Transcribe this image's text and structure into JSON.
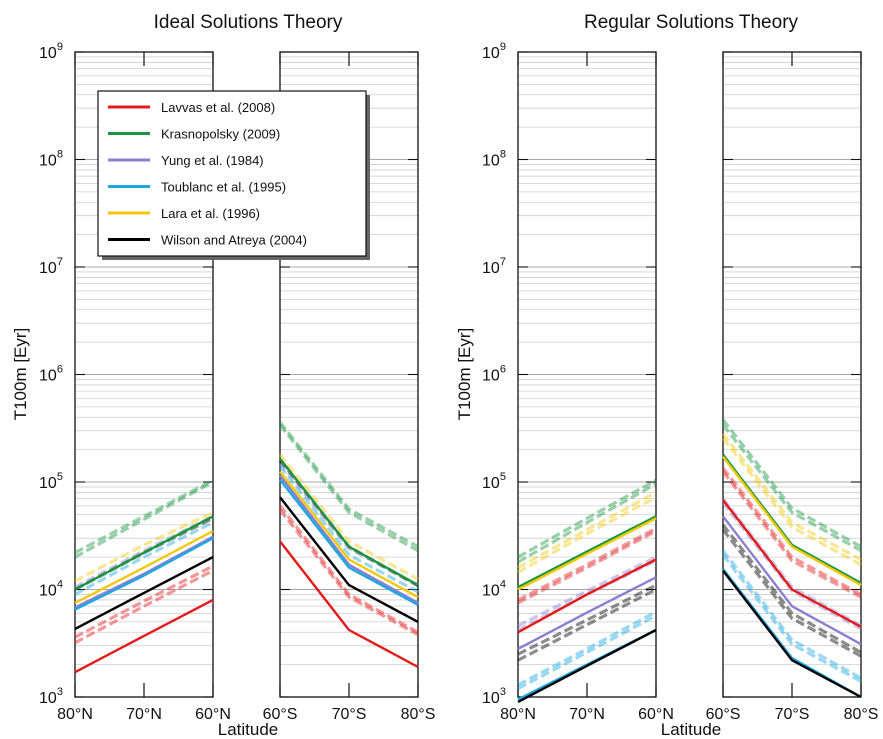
{
  "panels": [
    {
      "title": "Ideal Solutions Theory",
      "ylabel": "T100m [Eyr]"
    },
    {
      "title": "Regular Solutions Theory",
      "ylabel": "T100m [Eyr]"
    }
  ],
  "xlabel": "Latitude",
  "x_north_ticks": [
    "80°N",
    "70°N",
    "60°N"
  ],
  "x_south_ticks": [
    "60°S",
    "70°S",
    "80°S"
  ],
  "y_ticks": [
    {
      "base": "10",
      "exp": "3"
    },
    {
      "base": "10",
      "exp": "4"
    },
    {
      "base": "10",
      "exp": "5"
    },
    {
      "base": "10",
      "exp": "6"
    },
    {
      "base": "10",
      "exp": "7"
    },
    {
      "base": "10",
      "exp": "8"
    },
    {
      "base": "10",
      "exp": "9"
    }
  ],
  "legend": [
    {
      "label": "Lavvas et al. (2008)",
      "color": "#e41a1c"
    },
    {
      "label": "Krasnopolsky (2009)",
      "color": "#1a9641"
    },
    {
      "label": "Yung et al. (1984)",
      "color": "#8c7fd0"
    },
    {
      "label": "Toublanc et al. (1995)",
      "color": "#1ea7e0"
    },
    {
      "label": "Lara et al. (1996)",
      "color": "#f2c80f"
    },
    {
      "label": "Wilson and Atreya (2004)",
      "color": "#000000"
    }
  ],
  "chart_data": [
    {
      "type": "line",
      "title": "Ideal Solutions Theory",
      "xlabel": "Latitude",
      "ylabel": "T100m [Eyr]",
      "yscale": "log",
      "ylim": [
        1000,
        1000000000
      ],
      "north_x": [
        "80°N",
        "70°N",
        "60°N"
      ],
      "south_x": [
        "60°S",
        "70°S",
        "80°S"
      ],
      "series": [
        {
          "name": "Lavvas et al. (2008)",
          "color": "#e41a1c",
          "north": [
            1700,
            3700,
            8000
          ],
          "south": [
            28000,
            4200,
            1900
          ]
        },
        {
          "name": "Krasnopolsky (2009)",
          "color": "#1a9641",
          "north": [
            10000,
            22000,
            48000
          ],
          "south": [
            165000,
            25000,
            11000
          ]
        },
        {
          "name": "Yung et al. (1984)",
          "color": "#8c7fd0",
          "north": [
            6800,
            14000,
            31000
          ],
          "south": [
            115000,
            17000,
            7500
          ]
        },
        {
          "name": "Toublanc et al. (1995)",
          "color": "#1ea7e0",
          "north": [
            6500,
            13500,
            30000
          ],
          "south": [
            105000,
            16000,
            7200
          ]
        },
        {
          "name": "Lara et al. (1996)",
          "color": "#f2c80f",
          "north": [
            7500,
            16000,
            35000
          ],
          "south": [
            125000,
            19000,
            8500
          ]
        },
        {
          "name": "Wilson and Atreya (2004)",
          "color": "#000000",
          "north": [
            4300,
            9300,
            20000
          ],
          "south": [
            72000,
            11000,
            5000
          ]
        }
      ],
      "dashed_companions": [
        {
          "color": "#e41a1c",
          "north": [
            3200,
            7000,
            15000
          ],
          "south": [
            55000,
            8500,
            3800
          ]
        },
        {
          "color": "#e41a1c",
          "north": [
            3600,
            7800,
            16500
          ],
          "south": [
            60000,
            9000,
            4000
          ]
        },
        {
          "color": "#1a9641",
          "north": [
            20000,
            45000,
            100000
          ],
          "south": [
            340000,
            52000,
            23000
          ]
        },
        {
          "color": "#1a9641",
          "north": [
            22000,
            48000,
            104000
          ],
          "south": [
            360000,
            56000,
            25000
          ]
        },
        {
          "color": "#f2c80f",
          "north": [
            12000,
            26000,
            52000
          ],
          "south": [
            180000,
            28000,
            12500
          ]
        },
        {
          "color": "#8c7fd0",
          "north": [
            10500,
            23000,
            48000
          ],
          "south": [
            150000,
            24000,
            11000
          ]
        },
        {
          "color": "#000000",
          "north": [
            10000,
            22000,
            46000
          ],
          "south": [
            160000,
            25000,
            10800
          ]
        },
        {
          "color": "#1ea7e0",
          "north": [
            9000,
            20000,
            42000
          ],
          "south": [
            140000,
            21000,
            9500
          ]
        }
      ]
    },
    {
      "type": "line",
      "title": "Regular Solutions Theory",
      "xlabel": "Latitude",
      "ylabel": "T100m [Eyr]",
      "yscale": "log",
      "ylim": [
        1000,
        1000000000
      ],
      "north_x": [
        "80°N",
        "70°N",
        "60°N"
      ],
      "south_x": [
        "60°S",
        "70°S",
        "80°S"
      ],
      "series": [
        {
          "name": "Lavvas et al. (2008)",
          "color": "#e41a1c",
          "north": [
            4000,
            9000,
            19000
          ],
          "south": [
            68000,
            10000,
            4500
          ]
        },
        {
          "name": "Krasnopolsky (2009)",
          "color": "#1a9641",
          "north": [
            10500,
            22500,
            48000
          ],
          "south": [
            180000,
            26000,
            11500
          ]
        },
        {
          "name": "Yung et al. (1984)",
          "color": "#8c7fd0",
          "north": [
            2800,
            6100,
            13000
          ],
          "south": [
            48000,
            7000,
            3100
          ]
        },
        {
          "name": "Toublanc et al. (1995)",
          "color": "#1ea7e0",
          "north": [
            950,
            2000,
            4200
          ],
          "south": [
            15500,
            2300,
            1000
          ]
        },
        {
          "name": "Lara et al. (1996)",
          "color": "#f2c80f",
          "north": [
            10000,
            21500,
            46000
          ],
          "south": [
            172000,
            25000,
            11000
          ]
        },
        {
          "name": "Wilson and Atreya (2004)",
          "color": "#000000",
          "north": [
            900,
            1950,
            4200
          ],
          "south": [
            15000,
            2200,
            1000
          ]
        }
      ],
      "dashed_companions": [
        {
          "color": "#1a9641",
          "north": [
            20000,
            46000,
            104000
          ],
          "south": [
            380000,
            57000,
            25000
          ]
        },
        {
          "color": "#1a9641",
          "north": [
            18000,
            42000,
            96000
          ],
          "south": [
            340000,
            52000,
            23000
          ]
        },
        {
          "color": "#f2c80f",
          "north": [
            16000,
            36000,
            80000
          ],
          "south": [
            280000,
            42000,
            19000
          ]
        },
        {
          "color": "#f2c80f",
          "north": [
            14500,
            33000,
            72000
          ],
          "south": [
            255000,
            38000,
            17000
          ]
        },
        {
          "color": "#8c7fd0",
          "north": [
            4600,
            9700,
            20000
          ],
          "south": [
            70000,
            10500,
            4600
          ]
        },
        {
          "color": "#8c7fd0",
          "north": [
            4200,
            9000,
            18500
          ],
          "south": [
            64000,
            9700,
            4300
          ]
        },
        {
          "color": "#000000",
          "north": [
            2500,
            5200,
            11000
          ],
          "south": [
            40000,
            6000,
            2600
          ]
        },
        {
          "color": "#000000",
          "north": [
            2200,
            4700,
            10000
          ],
          "south": [
            36000,
            5400,
            2400
          ]
        },
        {
          "color": "#1ea7e0",
          "north": [
            1300,
            2800,
            6200
          ],
          "south": [
            23000,
            3400,
            1500
          ]
        },
        {
          "color": "#1ea7e0",
          "north": [
            1200,
            2600,
            5700
          ],
          "south": [
            21000,
            3100,
            1400
          ]
        },
        {
          "color": "#e41a1c",
          "north": [
            8000,
            17000,
            37000
          ],
          "south": [
            135000,
            20000,
            9000
          ]
        },
        {
          "color": "#e41a1c",
          "north": [
            7500,
            16000,
            35000
          ],
          "south": [
            125000,
            18500,
            8500
          ]
        }
      ]
    }
  ]
}
